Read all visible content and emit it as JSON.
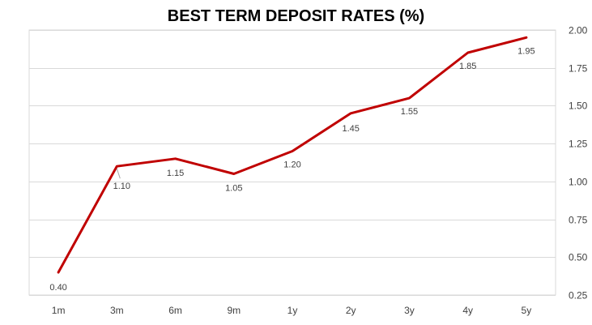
{
  "chart_data": {
    "type": "line",
    "title": "BEST TERM DEPOSIT RATES (%)",
    "categories": [
      "1m",
      "3m",
      "6m",
      "9m",
      "1y",
      "2y",
      "3y",
      "4y",
      "5y"
    ],
    "series": [
      {
        "values": [
          0.4,
          1.1,
          1.15,
          1.05,
          1.2,
          1.45,
          1.55,
          1.85,
          1.95
        ]
      }
    ],
    "data_labels": [
      "0.40",
      "1.10",
      "1.15",
      "1.05",
      "1.20",
      "1.45",
      "1.55",
      "1.85",
      "1.95"
    ],
    "y_ticks": [
      "2.00",
      "1.75",
      "1.50",
      "1.25",
      "1.00",
      "0.75",
      "0.50",
      "0.25"
    ],
    "ylim": [
      0.25,
      2.0
    ],
    "y_axis_position": "right",
    "grid": true,
    "legend": "none",
    "line_color": "#C00000",
    "grid_color": "#D9D9D9"
  }
}
